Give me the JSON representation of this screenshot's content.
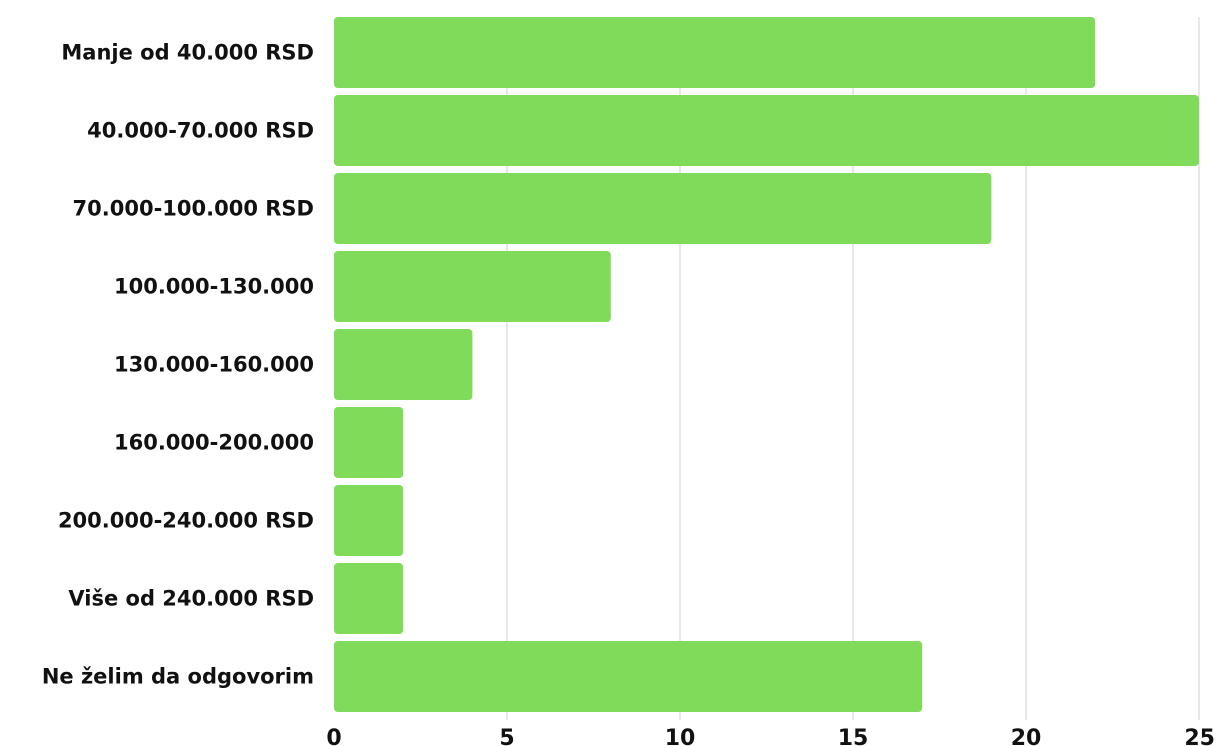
{
  "chart_data": {
    "type": "bar",
    "orientation": "horizontal",
    "categories": [
      "Manje od 40.000 RSD",
      "40.000-70.000 RSD",
      "70.000-100.000 RSD",
      "100.000-130.000",
      "130.000-160.000",
      "160.000-200.000",
      "200.000-240.000 RSD",
      "Više od 240.000 RSD",
      "Ne želim da odgovorim"
    ],
    "values": [
      22,
      25,
      19,
      8,
      4,
      2,
      2,
      2,
      17
    ],
    "xlim": [
      0,
      25
    ],
    "xticks": [
      "0",
      "5",
      "10",
      "15",
      "20",
      "25"
    ],
    "grid": true,
    "bar_color": "#80db5b",
    "title": "",
    "xlabel": "",
    "ylabel": ""
  }
}
